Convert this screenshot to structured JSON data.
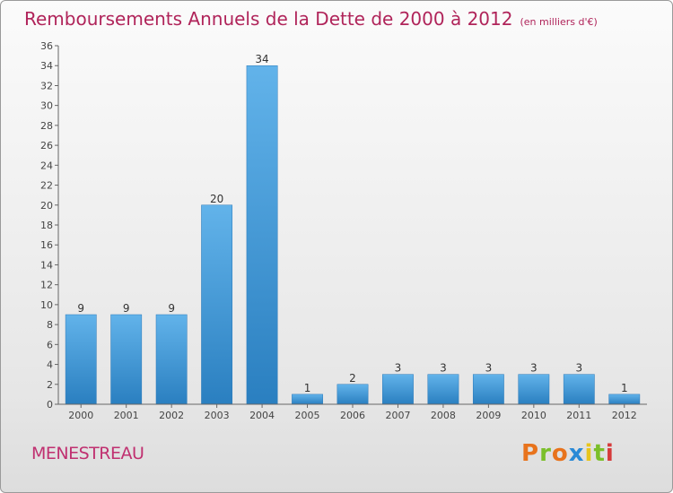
{
  "header": {
    "title": "Remboursements Annuels de la Dette de 2000 à 2012",
    "unit": "(en milliers d'€)"
  },
  "footer": {
    "commune": "MENESTREAU",
    "logo": "Proxiti"
  },
  "colors": {
    "bar_light": "#62b3ea",
    "bar_dark": "#2a7fc0",
    "title": "#b0245a",
    "logo_letters": [
      "#e8731c",
      "#7bbf2a",
      "#e8731c",
      "#2a8ad6",
      "#e8c51c",
      "#7bbf2a",
      "#d63a3a"
    ]
  },
  "chart_data": {
    "type": "bar",
    "title": "Remboursements Annuels de la Dette de 2000 à 2012",
    "xlabel": "",
    "ylabel": "",
    "categories": [
      "2000",
      "2001",
      "2002",
      "2003",
      "2004",
      "2005",
      "2006",
      "2007",
      "2008",
      "2009",
      "2010",
      "2011",
      "2012"
    ],
    "values": [
      9,
      9,
      9,
      20,
      34,
      1,
      2,
      3,
      3,
      3,
      3,
      3,
      1
    ],
    "ylim": [
      0,
      36
    ],
    "yticks": [
      0,
      2,
      4,
      6,
      8,
      10,
      12,
      14,
      16,
      18,
      20,
      22,
      24,
      26,
      28,
      30,
      32,
      34,
      36
    ],
    "grid": false,
    "legend": "none"
  }
}
